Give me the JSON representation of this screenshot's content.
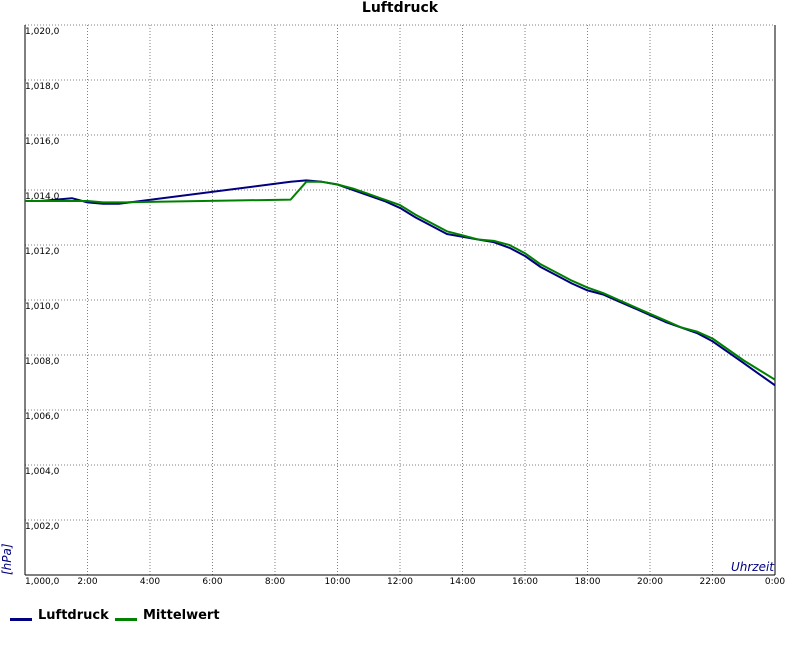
{
  "chart_data": {
    "type": "line",
    "title": "Luftdruck",
    "xlabel": "Uhrzeit",
    "ylabel": "[hPa]",
    "xlim": [
      0,
      24
    ],
    "ylim": [
      1000,
      1020
    ],
    "x_ticks": [
      "2:00",
      "4:00",
      "6:00",
      "8:00",
      "10:00",
      "12:00",
      "14:00",
      "16:00",
      "18:00",
      "20:00",
      "22:00",
      "0:00"
    ],
    "y_ticks": [
      "1,000,0",
      "1,002,0",
      "1,004,0",
      "1,006,0",
      "1,008,0",
      "1,010,0",
      "1,012,0",
      "1,014,0",
      "1,016,0",
      "1,018,0",
      "1,020,0"
    ],
    "grid": true,
    "legend_position": "bottom-left",
    "series": [
      {
        "name": "Luftdruck",
        "color": "#000080",
        "x": [
          0,
          0.5,
          1,
          1.5,
          2,
          2.5,
          3,
          8.5,
          9,
          9.5,
          10,
          10.5,
          11,
          11.5,
          12,
          12.5,
          13,
          13.5,
          14,
          14.5,
          15,
          15.5,
          16,
          16.5,
          17,
          17.5,
          18,
          18.5,
          19,
          19.5,
          20,
          20.5,
          21,
          21.5,
          22,
          22.5,
          23,
          23.5,
          24
        ],
        "y": [
          1013.6,
          1013.6,
          1013.65,
          1013.7,
          1013.55,
          1013.5,
          1013.5,
          1014.3,
          1014.35,
          1014.3,
          1014.2,
          1014.0,
          1013.8,
          1013.6,
          1013.35,
          1013.0,
          1012.7,
          1012.4,
          1012.3,
          1012.2,
          1012.1,
          1011.9,
          1011.6,
          1011.2,
          1010.9,
          1010.6,
          1010.35,
          1010.2,
          1009.95,
          1009.7,
          1009.45,
          1009.2,
          1009.0,
          1008.8,
          1008.5,
          1008.1,
          1007.7,
          1007.3,
          1006.9
        ]
      },
      {
        "name": "Mittelwert",
        "color": "#008000",
        "x": [
          0,
          0.5,
          1,
          1.5,
          2,
          2.5,
          3,
          8.5,
          9,
          9.5,
          10,
          10.5,
          11,
          11.5,
          12,
          12.5,
          13,
          13.5,
          14,
          14.5,
          15,
          15.5,
          16,
          16.5,
          17,
          17.5,
          18,
          18.5,
          19,
          19.5,
          20,
          20.5,
          21,
          21.5,
          22,
          22.5,
          23,
          23.5,
          24
        ],
        "y": [
          1013.6,
          1013.6,
          1013.6,
          1013.6,
          1013.6,
          1013.55,
          1013.55,
          1013.65,
          1014.3,
          1014.3,
          1014.2,
          1014.05,
          1013.85,
          1013.65,
          1013.45,
          1013.1,
          1012.8,
          1012.5,
          1012.35,
          1012.2,
          1012.15,
          1012.0,
          1011.7,
          1011.3,
          1011.0,
          1010.7,
          1010.45,
          1010.25,
          1010.0,
          1009.75,
          1009.5,
          1009.25,
          1009.0,
          1008.85,
          1008.6,
          1008.2,
          1007.8,
          1007.45,
          1007.1
        ]
      }
    ]
  }
}
